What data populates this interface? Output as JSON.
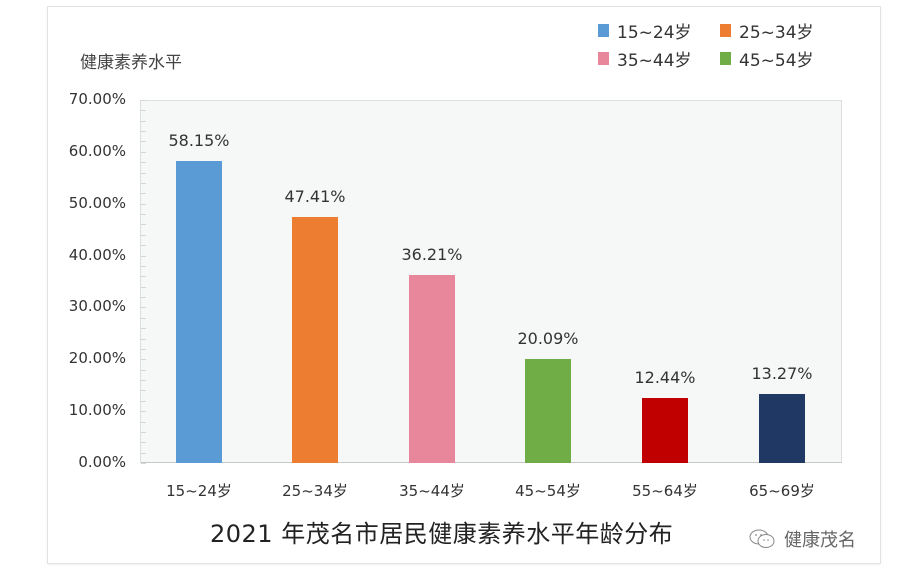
{
  "chart_data": {
    "type": "bar",
    "title": "2021 年茂名市居民健康素养水平年龄分布",
    "xlabel": "",
    "ylabel": "健康素养水平",
    "ylim": [
      0,
      70
    ],
    "y_ticks": [
      "70.00%",
      "60.00%",
      "50.00%",
      "40.00%",
      "30.00%",
      "20.00%",
      "10.00%",
      "0.00%"
    ],
    "categories": [
      "15~24岁",
      "25~34岁",
      "35~44岁",
      "45~54岁",
      "55~64岁",
      "65~69岁"
    ],
    "values": [
      58.15,
      47.41,
      36.21,
      20.09,
      12.44,
      13.27
    ],
    "value_labels": [
      "58.15%",
      "47.41%",
      "36.21%",
      "20.09%",
      "12.44%",
      "13.27%"
    ],
    "colors": [
      "#5b9bd5",
      "#ed7d31",
      "#e8879c",
      "#70ad47",
      "#c00000",
      "#203864"
    ],
    "legend": [
      {
        "label": "15~24岁",
        "color": "#5b9bd5"
      },
      {
        "label": "25~34岁",
        "color": "#ed7d31"
      },
      {
        "label": "35~44岁",
        "color": "#e8879c"
      },
      {
        "label": "45~54岁",
        "color": "#70ad47"
      }
    ],
    "legend_position": "top-right",
    "grid": false
  },
  "watermark": {
    "text": "健康茂名",
    "icon": "wechat-icon"
  }
}
